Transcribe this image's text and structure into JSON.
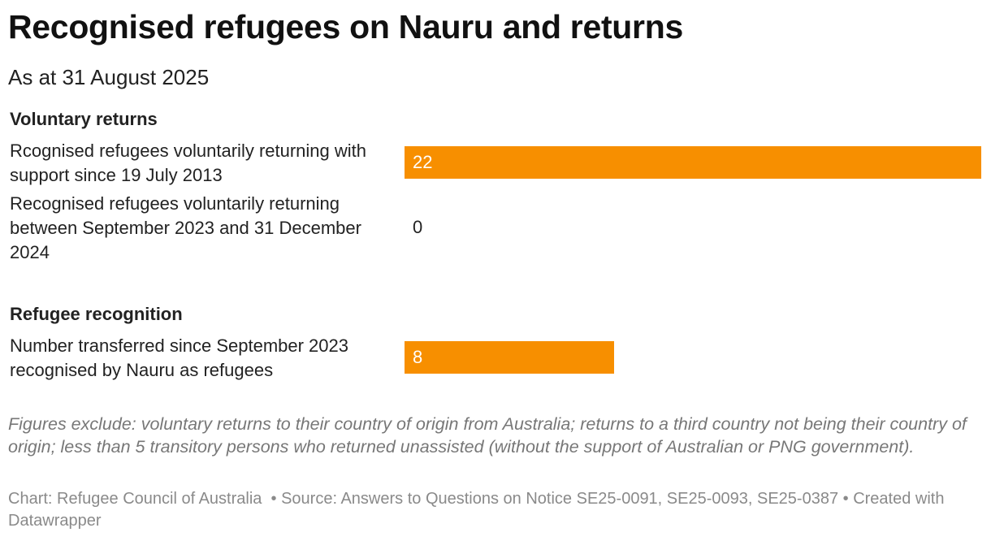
{
  "title": "Recognised refugees on Nauru and returns",
  "subtitle": "As at 31 August 2025",
  "notes": "Figures exclude: voluntary returns to their country of origin from Australia; returns to a third country not being their country of origin; less than 5 transitory persons who returned unassisted (without the support of Australian or PNG government).",
  "footer": {
    "chart_credit": "Chart: Refugee Council of Australia",
    "source": "• Source: Answers to Questions on Notice SE25-0091, SE25-0093, SE25-0387",
    "created": "• Created with Datawrapper"
  },
  "colors": {
    "bar": "#f78f00",
    "value_on_bar": "#ffffff",
    "value_outside": "#222222"
  },
  "chart_data": {
    "type": "bar",
    "orientation": "horizontal",
    "xlim": [
      0,
      22
    ],
    "groups": [
      {
        "title": "Voluntary returns",
        "rows": [
          {
            "label": "Rcognised refugees voluntarily returning with support since 19 July 2013",
            "value": 22
          },
          {
            "label": "Recognised refugees voluntarily returning between September 2023 and 31 December 2024",
            "value": 0
          }
        ]
      },
      {
        "title": "Refugee recognition",
        "rows": [
          {
            "label": "Number transferred since September 2023 recognised by Nauru as refugees",
            "value": 8
          }
        ]
      }
    ]
  }
}
